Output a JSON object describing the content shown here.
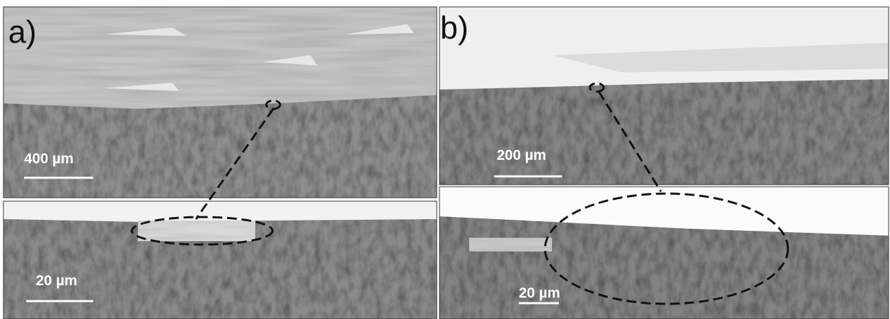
{
  "panels": [
    {
      "label": "a)",
      "views": [
        {
          "scale_label": "400 µm"
        },
        {
          "scale_label": "20 µm"
        }
      ]
    },
    {
      "label": "b)",
      "views": [
        {
          "scale_label": "200 µm"
        },
        {
          "scale_label": "20 µm"
        }
      ]
    }
  ]
}
